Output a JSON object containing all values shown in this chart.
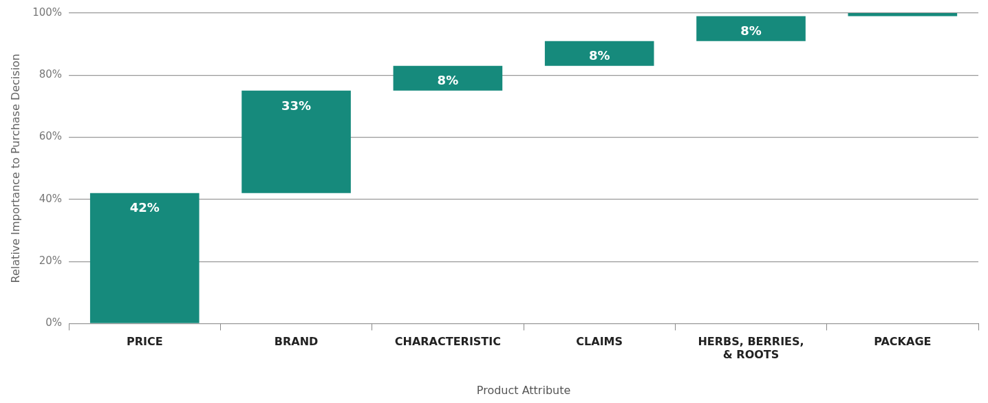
{
  "chart_data": {
    "type": "bar",
    "xlabel": "Product Attribute",
    "ylabel": "Relative Importance to Purchase Decision",
    "categories": [
      "PRICE",
      "BRAND",
      "CHARACTERISTIC",
      "CLAIMS",
      "HERBS, BERRIES, & ROOTS",
      "PACKAGE"
    ],
    "values": [
      42,
      33,
      8,
      8,
      8,
      1
    ],
    "base": [
      0,
      42,
      75,
      83,
      91,
      99
    ],
    "value_labels": [
      "42%",
      "33%",
      "8%",
      "8%",
      "8%",
      null
    ],
    "color": "#168a7c",
    "ylim": [
      0,
      100
    ],
    "yticks": [
      {
        "value": 0,
        "label": "0%"
      },
      {
        "value": 20,
        "label": "20%"
      },
      {
        "value": 40,
        "label": "40%"
      },
      {
        "value": 60,
        "label": "60%"
      },
      {
        "value": 80,
        "label": "80%"
      },
      {
        "value": 100,
        "label": "100%"
      }
    ],
    "grid": "y",
    "legend": false
  }
}
